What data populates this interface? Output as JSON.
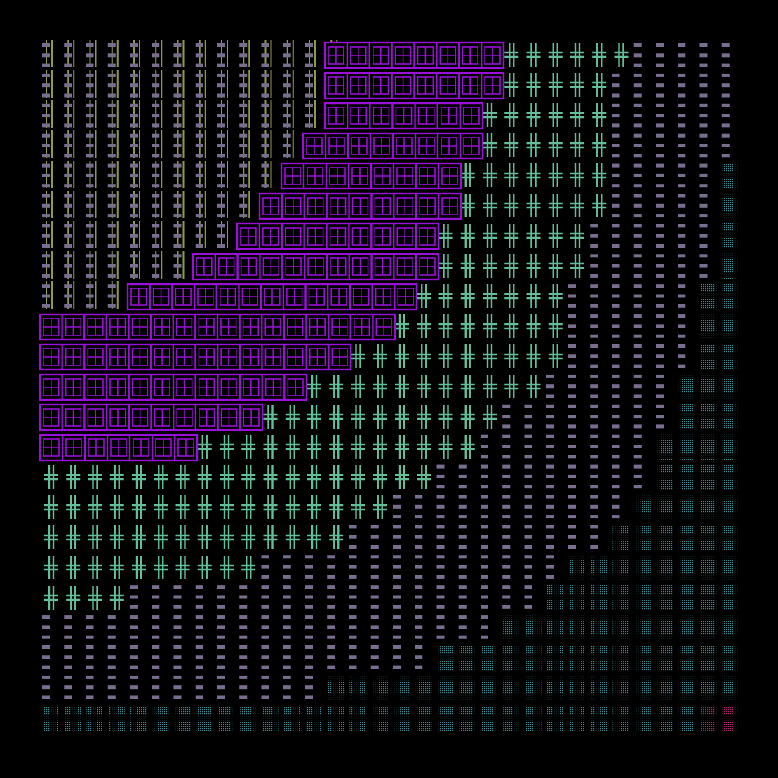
{
  "palette": {
    "background": "#000000",
    "yellow_lines": "#8f9a45",
    "purple_boxes": "#9a10d8",
    "green_crosses": "#63bf99",
    "grey_dashes": "#7a6e8e",
    "teal_dots": "#3d8c94",
    "magenta_dots": "#b0256f"
  },
  "pattern_names": [
    "yellow-line-pattern",
    "purple-box-pattern",
    "green-cross-pattern",
    "grey-dash-pattern",
    "teal-dot-pattern",
    "magenta-dot-pattern"
  ]
}
